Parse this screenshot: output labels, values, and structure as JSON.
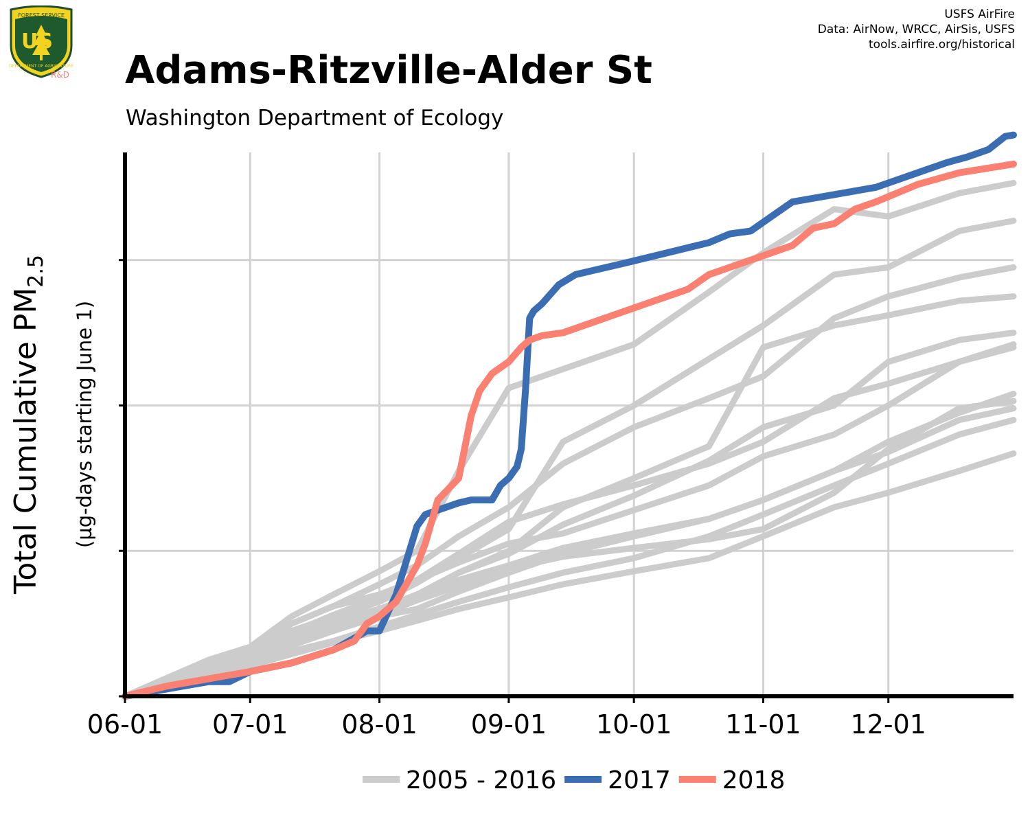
{
  "header": {
    "title": "Adams-Ritzville-Alder St",
    "subtitle": "Washington Department of Ecology"
  },
  "credits": [
    "USFS AirFire",
    "Data: AirNow, WRCC, AirSis, USFS",
    "tools.airfire.org/historical"
  ],
  "logo": {
    "top_text": "FOREST SERVICE",
    "letters": "US",
    "bottom_text": "DEPARTMENT OF AGRICULTURE",
    "rd": "R&D"
  },
  "chart_data": {
    "type": "line",
    "title": "Adams-Ritzville-Alder St",
    "ylabel_main": "Total Cumulative PM",
    "ylabel_sub": "2.5",
    "ylabel2": "(µg-days starting June 1)",
    "xlabel": "",
    "x_tick_labels": [
      "06-01",
      "07-01",
      "08-01",
      "09-01",
      "10-01",
      "11-01",
      "12-01"
    ],
    "x_tick_days": [
      0,
      30,
      61,
      92,
      122,
      153,
      183
    ],
    "xlim": [
      0,
      213
    ],
    "ylim": [
      0,
      3.74
    ],
    "y_gridlines": [
      1,
      2,
      3
    ],
    "y_tick_labels_shown": false,
    "grid": true,
    "legend_position": "bottom",
    "legend": [
      {
        "label": "2005 - 2016",
        "color": "#cccccc"
      },
      {
        "label": "2017",
        "color": "#3b6db3"
      },
      {
        "label": "2018",
        "color": "#fa8072"
      }
    ],
    "series": [
      {
        "name": "2005 - 2016",
        "color": "#cccccc",
        "x": [
          0,
          20,
          30,
          40,
          50,
          61,
          70,
          80,
          92,
          105,
          122,
          140,
          153,
          170,
          183,
          200,
          213
        ],
        "y": [
          0,
          0.25,
          0.34,
          0.55,
          0.7,
          0.86,
          1.0,
          1.55,
          2.12,
          2.25,
          2.42,
          2.78,
          3.05,
          3.35,
          3.3,
          3.46,
          3.53
        ]
      },
      {
        "name": "2005 - 2016",
        "color": "#cccccc",
        "x": [
          0,
          20,
          30,
          40,
          50,
          61,
          70,
          80,
          92,
          105,
          122,
          140,
          153,
          170,
          183,
          200,
          213
        ],
        "y": [
          0,
          0.2,
          0.3,
          0.45,
          0.55,
          0.65,
          0.78,
          0.95,
          1.15,
          1.75,
          2.0,
          2.32,
          2.55,
          2.9,
          2.95,
          3.2,
          3.27
        ]
      },
      {
        "name": "2005 - 2016",
        "color": "#cccccc",
        "x": [
          0,
          20,
          30,
          40,
          50,
          61,
          70,
          80,
          92,
          105,
          122,
          140,
          153,
          170,
          183,
          200,
          213
        ],
        "y": [
          0,
          0.22,
          0.32,
          0.5,
          0.62,
          0.77,
          0.9,
          1.1,
          1.3,
          1.6,
          1.85,
          2.05,
          2.2,
          2.6,
          2.75,
          2.88,
          2.95
        ]
      },
      {
        "name": "2005 - 2016",
        "color": "#cccccc",
        "x": [
          0,
          20,
          30,
          40,
          50,
          61,
          70,
          80,
          92,
          105,
          122,
          140,
          153,
          170,
          183,
          200,
          213
        ],
        "y": [
          0,
          0.18,
          0.28,
          0.42,
          0.52,
          0.6,
          0.7,
          0.85,
          1.0,
          1.3,
          1.5,
          1.72,
          2.4,
          2.55,
          2.62,
          2.72,
          2.75
        ]
      },
      {
        "name": "2005 - 2016",
        "color": "#cccccc",
        "x": [
          0,
          20,
          30,
          40,
          50,
          61,
          70,
          80,
          92,
          105,
          122,
          140,
          153,
          170,
          183,
          200,
          213
        ],
        "y": [
          0,
          0.2,
          0.33,
          0.5,
          0.62,
          0.7,
          0.8,
          0.98,
          1.2,
          1.32,
          1.45,
          1.6,
          1.75,
          2.05,
          2.15,
          2.3,
          2.4
        ]
      },
      {
        "name": "2005 - 2016",
        "color": "#cccccc",
        "x": [
          0,
          20,
          30,
          40,
          50,
          61,
          70,
          80,
          92,
          105,
          122,
          140,
          153,
          170,
          183,
          200,
          213
        ],
        "y": [
          0,
          0.17,
          0.27,
          0.38,
          0.48,
          0.58,
          0.68,
          0.85,
          0.98,
          1.18,
          1.38,
          1.62,
          1.85,
          2.0,
          2.3,
          2.45,
          2.5
        ]
      },
      {
        "name": "2005 - 2016",
        "color": "#cccccc",
        "x": [
          0,
          20,
          30,
          40,
          50,
          61,
          70,
          80,
          92,
          105,
          122,
          140,
          153,
          170,
          183,
          200,
          213
        ],
        "y": [
          0,
          0.19,
          0.29,
          0.44,
          0.56,
          0.68,
          0.8,
          0.92,
          1.05,
          1.12,
          1.28,
          1.45,
          1.65,
          1.8,
          2.0,
          2.3,
          2.42
        ]
      },
      {
        "name": "2005 - 2016",
        "color": "#cccccc",
        "x": [
          0,
          20,
          30,
          40,
          50,
          61,
          70,
          80,
          92,
          105,
          122,
          140,
          153,
          170,
          183,
          200,
          213
        ],
        "y": [
          0,
          0.16,
          0.25,
          0.35,
          0.45,
          0.55,
          0.6,
          0.72,
          0.85,
          0.98,
          1.1,
          1.22,
          1.35,
          1.55,
          1.75,
          1.95,
          2.08
        ]
      },
      {
        "name": "2005 - 2016",
        "color": "#cccccc",
        "x": [
          0,
          20,
          30,
          40,
          50,
          61,
          70,
          80,
          92,
          105,
          122,
          140,
          153,
          170,
          183,
          200,
          213
        ],
        "y": [
          0,
          0.15,
          0.25,
          0.36,
          0.46,
          0.56,
          0.66,
          0.76,
          0.88,
          0.96,
          1.02,
          1.08,
          1.15,
          1.4,
          1.7,
          1.98,
          2.03
        ]
      },
      {
        "name": "2005 - 2016",
        "color": "#cccccc",
        "x": [
          0,
          20,
          30,
          40,
          50,
          61,
          70,
          80,
          92,
          105,
          122,
          140,
          153,
          170,
          183,
          200,
          213
        ],
        "y": [
          0,
          0.17,
          0.26,
          0.38,
          0.5,
          0.6,
          0.7,
          0.8,
          0.9,
          1.02,
          1.12,
          1.22,
          1.35,
          1.55,
          1.68,
          1.9,
          1.98
        ]
      },
      {
        "name": "2005 - 2016",
        "color": "#cccccc",
        "x": [
          0,
          20,
          30,
          40,
          50,
          61,
          70,
          80,
          92,
          105,
          122,
          140,
          153,
          170,
          183,
          200,
          213
        ],
        "y": [
          0,
          0.14,
          0.22,
          0.31,
          0.38,
          0.48,
          0.56,
          0.65,
          0.75,
          0.85,
          0.95,
          1.1,
          1.25,
          1.45,
          1.6,
          1.8,
          1.9
        ]
      },
      {
        "name": "2005 - 2016",
        "color": "#cccccc",
        "x": [
          0,
          20,
          30,
          40,
          50,
          61,
          70,
          80,
          92,
          105,
          122,
          140,
          153,
          170,
          183,
          200,
          213
        ],
        "y": [
          0,
          0.13,
          0.21,
          0.29,
          0.37,
          0.45,
          0.52,
          0.6,
          0.68,
          0.77,
          0.86,
          0.95,
          1.1,
          1.3,
          1.4,
          1.55,
          1.67
        ]
      },
      {
        "name": "2017",
        "color": "#3b6db3",
        "x": [
          0,
          10,
          20,
          25,
          30,
          40,
          50,
          55,
          58,
          61,
          65,
          70,
          72,
          75,
          80,
          83,
          86,
          88,
          90,
          92,
          94,
          95,
          96,
          97,
          98,
          100,
          104,
          108,
          120,
          130,
          140,
          145,
          150,
          155,
          160,
          170,
          180,
          190,
          197,
          202,
          207,
          211,
          213
        ],
        "y": [
          0,
          0.05,
          0.1,
          0.1,
          0.17,
          0.23,
          0.32,
          0.4,
          0.45,
          0.45,
          0.7,
          1.17,
          1.25,
          1.28,
          1.33,
          1.35,
          1.35,
          1.35,
          1.45,
          1.5,
          1.58,
          1.7,
          2.1,
          2.6,
          2.65,
          2.7,
          2.83,
          2.9,
          2.98,
          3.05,
          3.12,
          3.18,
          3.2,
          3.3,
          3.4,
          3.45,
          3.5,
          3.6,
          3.67,
          3.71,
          3.76,
          3.85,
          3.86
        ]
      },
      {
        "name": "2018",
        "color": "#fa8072",
        "x": [
          0,
          10,
          20,
          30,
          40,
          50,
          55,
          58,
          61,
          65,
          70,
          72,
          75,
          80,
          83,
          85,
          88,
          92,
          95,
          97,
          100,
          105,
          115,
          125,
          130,
          135,
          140,
          145,
          150,
          155,
          160,
          165,
          170,
          175,
          180,
          190,
          200,
          213
        ],
        "y": [
          0,
          0.07,
          0.12,
          0.17,
          0.23,
          0.32,
          0.38,
          0.5,
          0.55,
          0.65,
          0.9,
          1.05,
          1.35,
          1.5,
          1.93,
          2.1,
          2.22,
          2.3,
          2.4,
          2.45,
          2.48,
          2.5,
          2.6,
          2.7,
          2.75,
          2.8,
          2.9,
          2.95,
          3.0,
          3.05,
          3.1,
          3.22,
          3.25,
          3.35,
          3.4,
          3.52,
          3.6,
          3.66
        ]
      }
    ]
  }
}
